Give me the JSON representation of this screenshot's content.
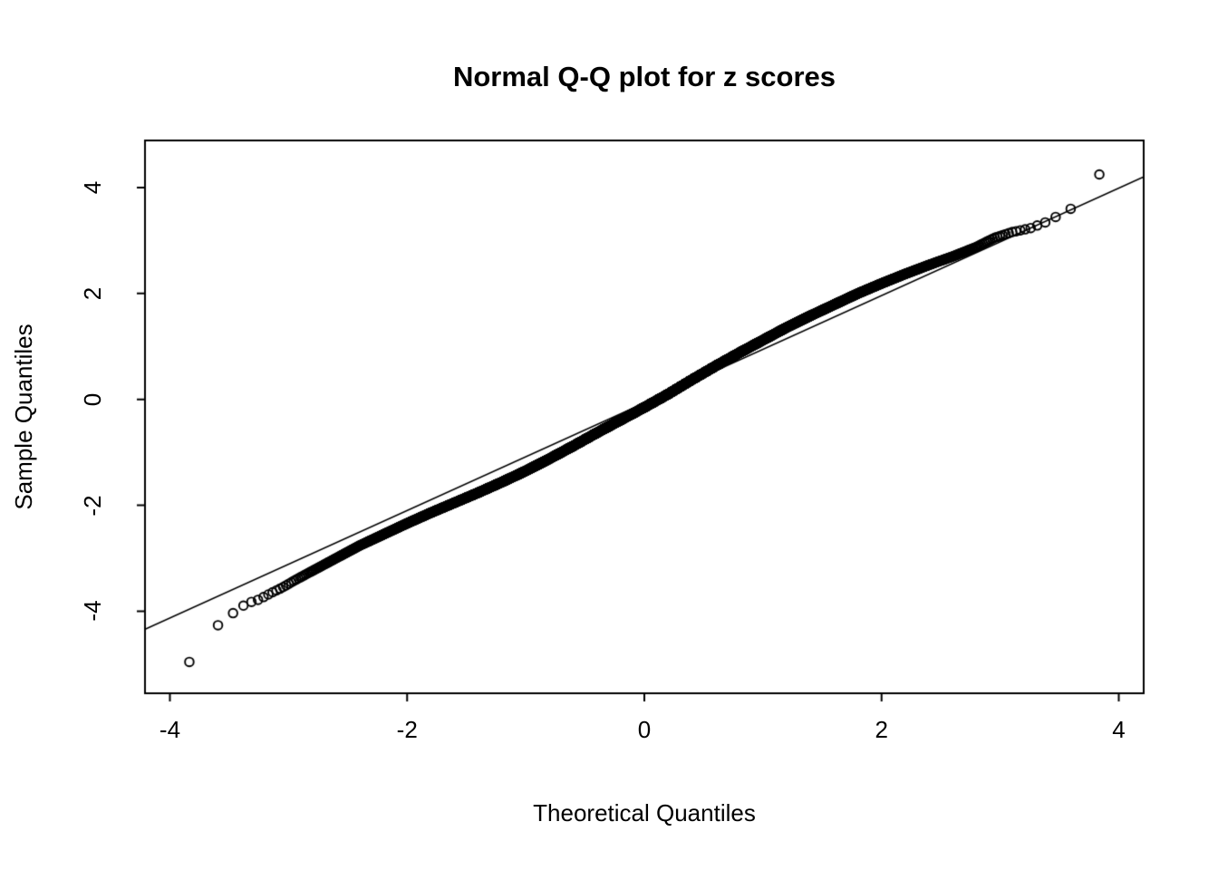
{
  "chart_data": {
    "type": "scatter",
    "subtype": "normal-qq-plot",
    "title": "Normal Q-Q plot for z scores",
    "xlabel": "Theoretical Quantiles",
    "ylabel": "Sample Quantiles",
    "x_ticks": [
      -4,
      -2,
      0,
      2,
      4
    ],
    "y_ticks": [
      -4,
      -2,
      0,
      2,
      4
    ],
    "xlim": [
      -4.21,
      4.21
    ],
    "ylim": [
      -5.55,
      4.89
    ],
    "grid": false,
    "legend": false,
    "marker": "open-circle",
    "point_color": "#000000",
    "line_color": "#000000",
    "background": "#ffffff",
    "n_points": 10000,
    "reference_line": {
      "slope": 1.015,
      "intercept": -0.07
    },
    "qq_curve": [
      [
        -3.9,
        -5.15
      ],
      [
        -3.62,
        -4.31
      ],
      [
        -3.43,
        -3.97
      ],
      [
        -3.35,
        -3.85
      ],
      [
        -3.25,
        -3.78
      ],
      [
        -3.15,
        -3.66
      ],
      [
        -3.05,
        -3.55
      ],
      [
        -2.95,
        -3.42
      ],
      [
        -2.8,
        -3.24
      ],
      [
        -2.6,
        -3.0
      ],
      [
        -2.4,
        -2.76
      ],
      [
        -2.2,
        -2.55
      ],
      [
        -2.0,
        -2.34
      ],
      [
        -1.8,
        -2.14
      ],
      [
        -1.6,
        -1.95
      ],
      [
        -1.4,
        -1.76
      ],
      [
        -1.2,
        -1.56
      ],
      [
        -1.0,
        -1.35
      ],
      [
        -0.8,
        -1.12
      ],
      [
        -0.6,
        -0.88
      ],
      [
        -0.4,
        -0.63
      ],
      [
        -0.2,
        -0.39
      ],
      [
        0.0,
        -0.15
      ],
      [
        0.2,
        0.1
      ],
      [
        0.4,
        0.37
      ],
      [
        0.6,
        0.63
      ],
      [
        0.8,
        0.88
      ],
      [
        1.0,
        1.12
      ],
      [
        1.2,
        1.36
      ],
      [
        1.4,
        1.58
      ],
      [
        1.6,
        1.79
      ],
      [
        1.8,
        2.0
      ],
      [
        2.0,
        2.19
      ],
      [
        2.2,
        2.37
      ],
      [
        2.4,
        2.54
      ],
      [
        2.6,
        2.7
      ],
      [
        2.8,
        2.88
      ],
      [
        2.95,
        3.05
      ],
      [
        3.1,
        3.16
      ],
      [
        3.25,
        3.23
      ],
      [
        3.4,
        3.36
      ],
      [
        3.55,
        3.55
      ],
      [
        3.65,
        3.66
      ],
      [
        3.9,
        4.45
      ]
    ]
  }
}
